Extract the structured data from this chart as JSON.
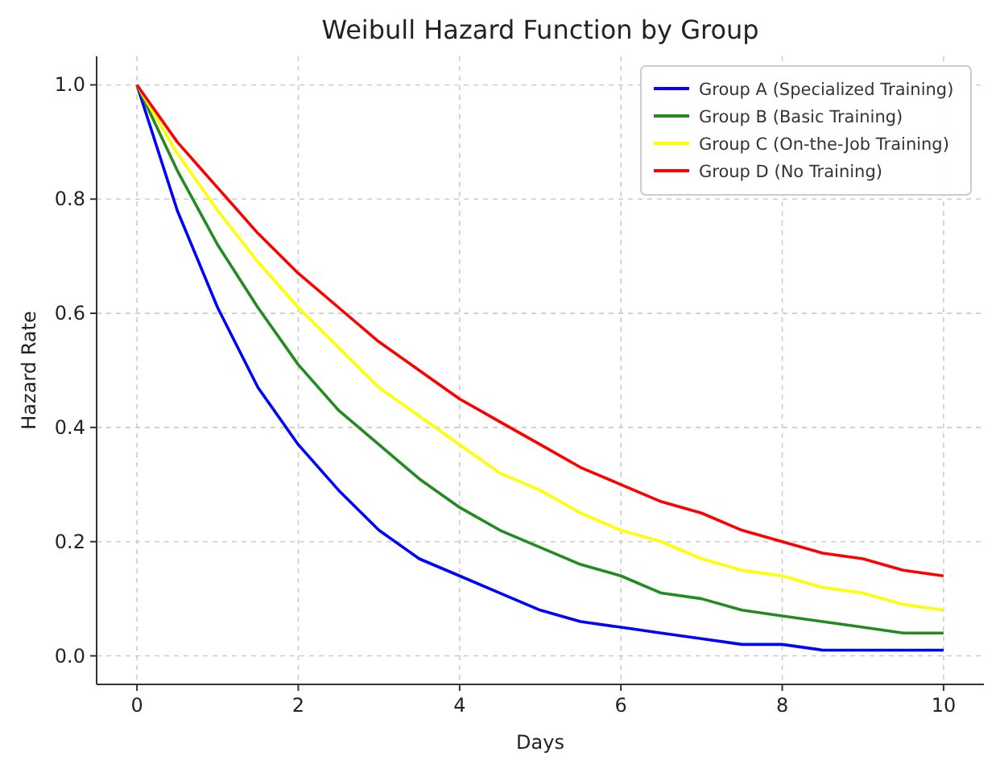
{
  "chart_data": {
    "type": "line",
    "title": "Weibull Hazard Function by Group",
    "xlabel": "Days",
    "ylabel": "Hazard Rate",
    "x": [
      0,
      0.5,
      1,
      1.5,
      2,
      2.5,
      3,
      3.5,
      4,
      4.5,
      5,
      5.5,
      6,
      6.5,
      7,
      7.5,
      8,
      8.5,
      9,
      9.5,
      10
    ],
    "series": [
      {
        "name": "Group A (Specialized Training)",
        "color": "#0000ff",
        "values": [
          1,
          0.78,
          0.61,
          0.47,
          0.37,
          0.29,
          0.22,
          0.17,
          0.14,
          0.11,
          0.08,
          0.06,
          0.05,
          0.04,
          0.03,
          0.02,
          0.02,
          0.01,
          0.01,
          0.01,
          0.01
        ]
      },
      {
        "name": "Group B (Basic Training)",
        "color": "#228b22",
        "values": [
          1,
          0.85,
          0.72,
          0.61,
          0.51,
          0.43,
          0.37,
          0.31,
          0.26,
          0.22,
          0.19,
          0.16,
          0.14,
          0.11,
          0.1,
          0.08,
          0.07,
          0.06,
          0.05,
          0.04,
          0.04
        ]
      },
      {
        "name": "Group C (On-the-Job Training)",
        "color": "#ffff00",
        "values": [
          1,
          0.88,
          0.78,
          0.69,
          0.61,
          0.54,
          0.47,
          0.42,
          0.37,
          0.32,
          0.29,
          0.25,
          0.22,
          0.2,
          0.17,
          0.15,
          0.14,
          0.12,
          0.11,
          0.09,
          0.08
        ]
      },
      {
        "name": "Group D (No Training)",
        "color": "#ff0000",
        "values": [
          1,
          0.9,
          0.82,
          0.74,
          0.67,
          0.61,
          0.55,
          0.5,
          0.45,
          0.41,
          0.37,
          0.33,
          0.3,
          0.27,
          0.25,
          0.22,
          0.2,
          0.18,
          0.17,
          0.15,
          0.14
        ]
      }
    ],
    "xlim": [
      -0.5,
      10.5
    ],
    "ylim": [
      -0.05,
      1.05
    ],
    "xticks": [
      0,
      2,
      4,
      6,
      8,
      10
    ],
    "yticks": [
      {
        "value": 0,
        "label": "0.0"
      },
      {
        "value": 0.2,
        "label": "0.2"
      },
      {
        "value": 0.4,
        "label": "0.4"
      },
      {
        "value": 0.6,
        "label": "0.6"
      },
      {
        "value": 0.8,
        "label": "0.8"
      },
      {
        "value": 1,
        "label": "1.0"
      }
    ],
    "grid": true,
    "legend": "top right",
    "line_style": "solid"
  }
}
